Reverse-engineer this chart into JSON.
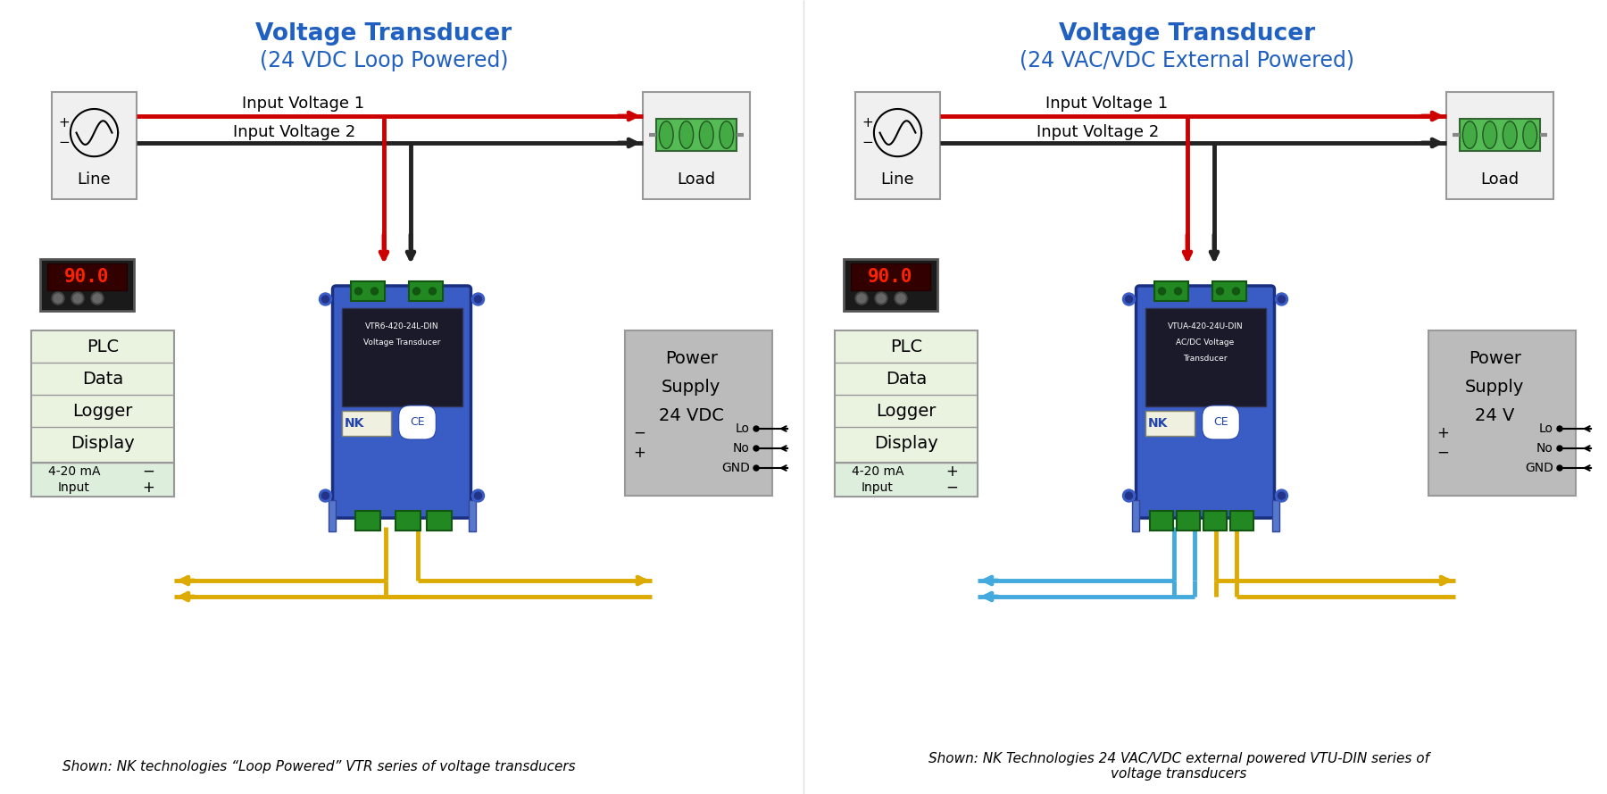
{
  "bg_color": "#ffffff",
  "title_left": "Voltage Transducer",
  "subtitle_left": "(24 VDC Loop Powered)",
  "title_right": "Voltage Transducer",
  "subtitle_right": "(24 VAC/VDC External Powered)",
  "title_color": "#2060c0",
  "caption_left": "Shown: NK technologies “Loop Powered” VTR series of voltage transducers",
  "caption_right": "Shown: NK Technologies 24 VAC/VDC external powered VTU-DIN series of\nvoltage transducers",
  "label_input1": "Input Voltage 1",
  "label_input2": "Input Voltage 2",
  "label_line": "Line",
  "label_load": "Load",
  "label_plc_lines": [
    "PLC",
    "Data",
    "Logger",
    "Display"
  ],
  "label_4_20ma": "4-20 mA",
  "label_input": "Input",
  "label_ps_left": [
    "Power",
    "Supply",
    "24 VDC"
  ],
  "label_ps_right": [
    "Power",
    "Supply",
    "24 V"
  ],
  "ps_terminals": [
    "Lo",
    "No",
    "GND"
  ],
  "model_left": "VTR6-420-24L-DIN\nVoltage Transducer",
  "model_right": "VTUA-420-24U-DIN\nAC/DC Voltage\nTransducer",
  "wire_red": "#cc0000",
  "wire_black": "#222222",
  "wire_yellow": "#ddaa00",
  "wire_blue": "#44aadd",
  "box_border": "#999999",
  "ps_bg": "#bbbbbb",
  "plc_bg": "#eaf2e0",
  "line_box_bg": "#f0f0f0",
  "load_box_bg": "#f0f0f0"
}
